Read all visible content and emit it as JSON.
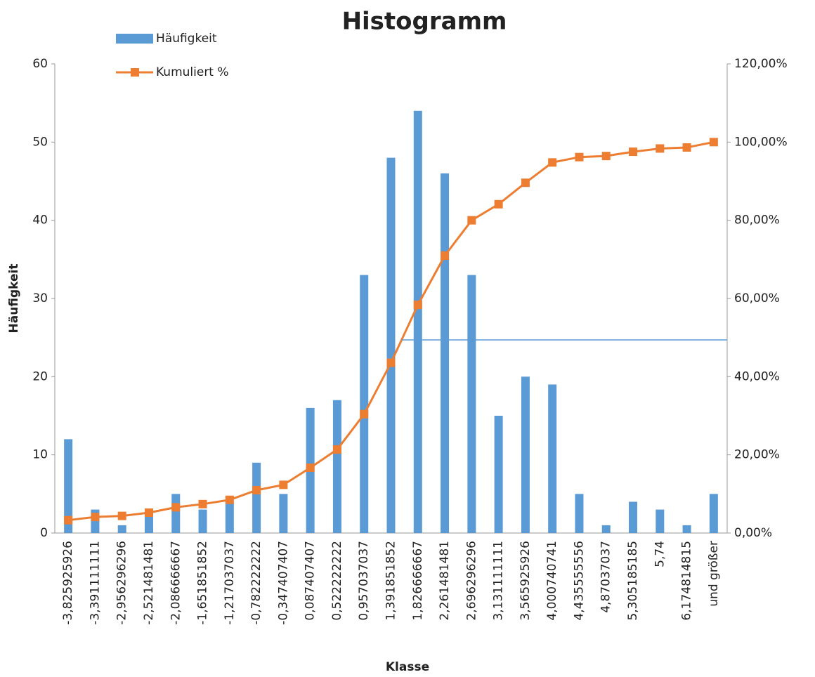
{
  "chart_data": {
    "type": "bar",
    "title": "Histogramm",
    "x_label": "Klasse",
    "y_label": "Häufigkeit",
    "categories": [
      "-3,825925926",
      "-3,391111111",
      "-2,956296296",
      "-2,521481481",
      "-2,086666667",
      "-1,651851852",
      "-1,217037037",
      "-0,782222222",
      "-0,347407407",
      "0,087407407",
      "0,522222222",
      "0,957037037",
      "1,391851852",
      "1,826666667",
      "2,261481481",
      "2,696296296",
      "3,131111111",
      "3,565925926",
      "4,000740741",
      "4,435555556",
      "4,87037037",
      "5,305185185",
      "5,74",
      "6,174814815",
      "und größer"
    ],
    "series": [
      {
        "name": "Häufigkeit",
        "type": "bar",
        "color": "#5b9bd5",
        "values": [
          12,
          3,
          1,
          3,
          5,
          3,
          4,
          9,
          5,
          16,
          17,
          33,
          48,
          54,
          46,
          33,
          15,
          20,
          19,
          5,
          1,
          4,
          3,
          1,
          5
        ]
      },
      {
        "name": "Kumuliert %",
        "type": "line",
        "axis": "y2",
        "color": "#ed7d31",
        "values": [
          3.29,
          4.11,
          4.38,
          5.21,
          6.58,
          7.4,
          8.49,
          10.96,
          12.33,
          16.71,
          21.37,
          30.41,
          43.56,
          58.36,
          70.96,
          80,
          84.11,
          89.59,
          94.79,
          96.16,
          96.44,
          97.53,
          98.36,
          98.63,
          100
        ]
      }
    ],
    "ylim": [
      0,
      60
    ],
    "yticks": [
      0,
      10,
      20,
      30,
      40,
      50,
      60
    ],
    "y2lim": [
      0,
      120
    ],
    "y2ticks": [
      {
        "value": 0,
        "label": "0,00%"
      },
      {
        "value": 20,
        "label": "20,00%"
      },
      {
        "value": 40,
        "label": "40,00%"
      },
      {
        "value": 60,
        "label": "60,00%"
      },
      {
        "value": 80,
        "label": "80,00%"
      },
      {
        "value": 100,
        "label": "100,00%"
      },
      {
        "value": 120,
        "label": "120,00%"
      }
    ],
    "reference_line": {
      "value": 24.7,
      "color": "#5b9bd5"
    },
    "grid": false,
    "legend": "top-left"
  }
}
